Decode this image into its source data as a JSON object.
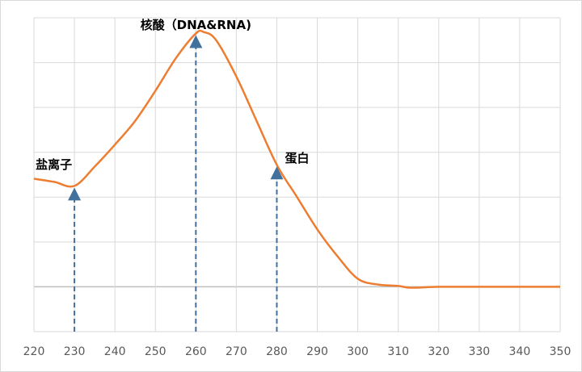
{
  "chart_data": {
    "type": "line",
    "x": [
      220,
      225,
      230,
      235,
      240,
      245,
      250,
      255,
      260,
      262,
      265,
      270,
      275,
      280,
      285,
      290,
      295,
      300,
      305,
      310,
      313,
      320,
      330,
      340,
      350
    ],
    "series": [
      {
        "color": "#ed7d31",
        "values": [
          2.41,
          2.34,
          2.25,
          2.68,
          3.17,
          3.7,
          4.37,
          5.09,
          5.65,
          5.68,
          5.5,
          4.69,
          3.7,
          2.72,
          2.0,
          1.28,
          0.68,
          0.18,
          0.05,
          0.02,
          -0.02,
          0,
          0,
          0,
          0
        ]
      }
    ],
    "xlim": [
      220,
      350
    ],
    "xticks": [
      220,
      230,
      240,
      250,
      260,
      270,
      280,
      290,
      300,
      310,
      320,
      330,
      340,
      350
    ],
    "ylim": [
      -1,
      6
    ],
    "yticks": [
      -1,
      0,
      1,
      2,
      3,
      4,
      5,
      6
    ],
    "grid": true,
    "annotations": [
      {
        "text": "盐离子",
        "x": 230
      },
      {
        "text": "核酸（DNA&RNA)",
        "x": 260
      },
      {
        "text": "蛋白",
        "x": 280
      }
    ]
  }
}
